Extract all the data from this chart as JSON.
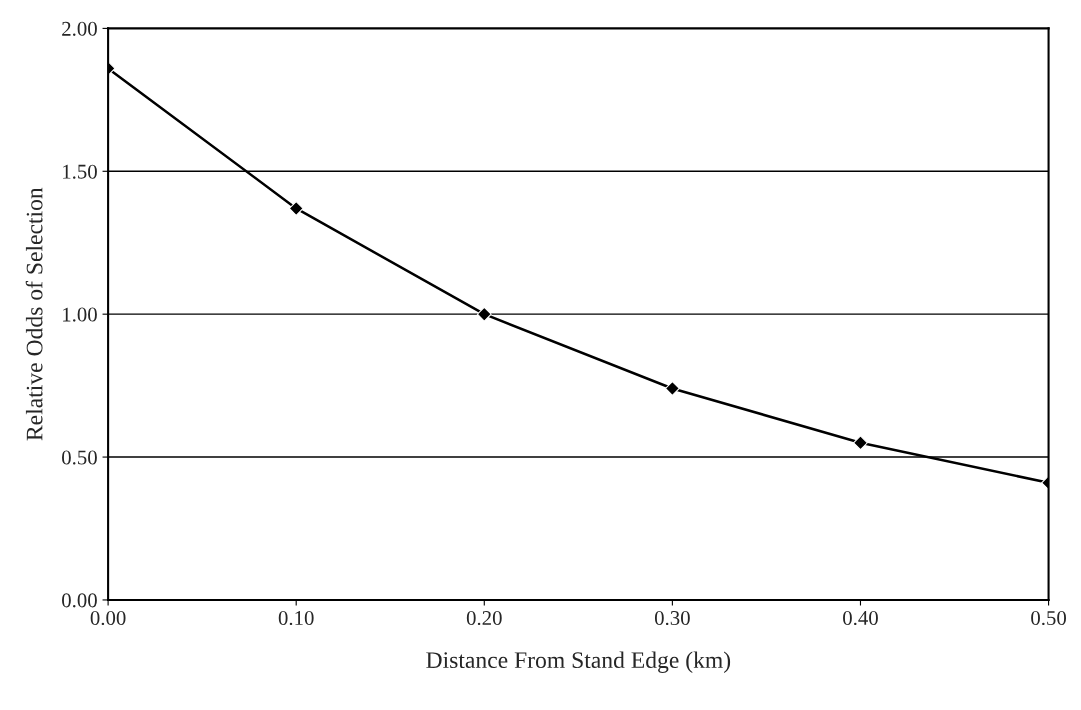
{
  "chart_data": {
    "type": "line",
    "xlabel": "Distance From Stand Edge (km)",
    "ylabel": "Relative Odds of Selection",
    "x": [
      0.0,
      0.1,
      0.2,
      0.3,
      0.4,
      0.5
    ],
    "series": [
      {
        "color": "#000000",
        "values": [
          1.86,
          1.37,
          1.0,
          0.74,
          0.55,
          0.41
        ]
      }
    ],
    "xlim": [
      0.0,
      0.5
    ],
    "ylim": [
      0.0,
      2.0
    ],
    "xticks": [
      {
        "value": 0.0,
        "label": "0.00"
      },
      {
        "value": 0.1,
        "label": "0.10"
      },
      {
        "value": 0.2,
        "label": "0.20"
      },
      {
        "value": 0.3,
        "label": "0.30"
      },
      {
        "value": 0.4,
        "label": "0.40"
      },
      {
        "value": 0.5,
        "label": "0.50"
      }
    ],
    "yticks": [
      {
        "value": 0.0,
        "label": "0.00"
      },
      {
        "value": 0.5,
        "label": "0.50"
      },
      {
        "value": 1.0,
        "label": "1.00"
      },
      {
        "value": 1.5,
        "label": "1.50"
      },
      {
        "value": 2.0,
        "label": "2.00"
      }
    ],
    "grid": "y",
    "marker": "diamond",
    "line_style": "solid"
  }
}
